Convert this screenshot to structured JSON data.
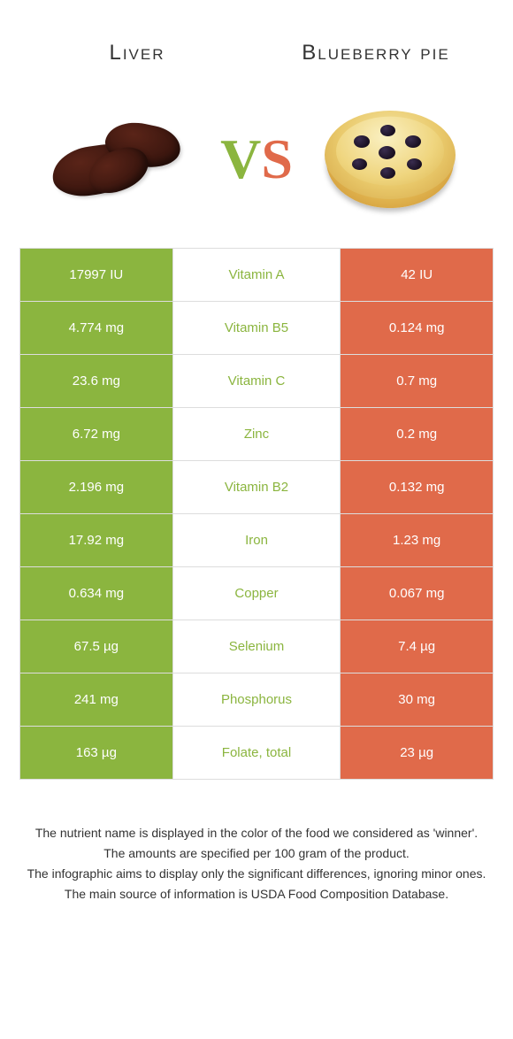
{
  "header": {
    "left_label": "Liver",
    "right_label": "Blueberry pie"
  },
  "vs": {
    "v": "V",
    "s": "S"
  },
  "colors": {
    "left": "#8bb53f",
    "right": "#e06a4a",
    "liver_dark": "#3f1810",
    "crust": "#e9c96b",
    "berry": "#1a1022"
  },
  "rows": [
    {
      "left": "17997 IU",
      "name": "Vitamin A",
      "right": "42 IU",
      "winner": "left"
    },
    {
      "left": "4.774 mg",
      "name": "Vitamin B5",
      "right": "0.124 mg",
      "winner": "left"
    },
    {
      "left": "23.6 mg",
      "name": "Vitamin C",
      "right": "0.7 mg",
      "winner": "left"
    },
    {
      "left": "6.72 mg",
      "name": "Zinc",
      "right": "0.2 mg",
      "winner": "left"
    },
    {
      "left": "2.196 mg",
      "name": "Vitamin B2",
      "right": "0.132 mg",
      "winner": "left"
    },
    {
      "left": "17.92 mg",
      "name": "Iron",
      "right": "1.23 mg",
      "winner": "left"
    },
    {
      "left": "0.634 mg",
      "name": "Copper",
      "right": "0.067 mg",
      "winner": "left"
    },
    {
      "left": "67.5 µg",
      "name": "Selenium",
      "right": "7.4 µg",
      "winner": "left"
    },
    {
      "left": "241 mg",
      "name": "Phosphorus",
      "right": "30 mg",
      "winner": "left"
    },
    {
      "left": "163 µg",
      "name": "Folate, total",
      "right": "23 µg",
      "winner": "left"
    }
  ],
  "footer": {
    "l1": "The nutrient name is displayed in the color of the food we considered as 'winner'.",
    "l2": "The amounts are specified per 100 gram of the product.",
    "l3": "The infographic aims to display only the significant differences, ignoring minor ones.",
    "l4": "The main source of information is USDA Food Composition Database."
  }
}
